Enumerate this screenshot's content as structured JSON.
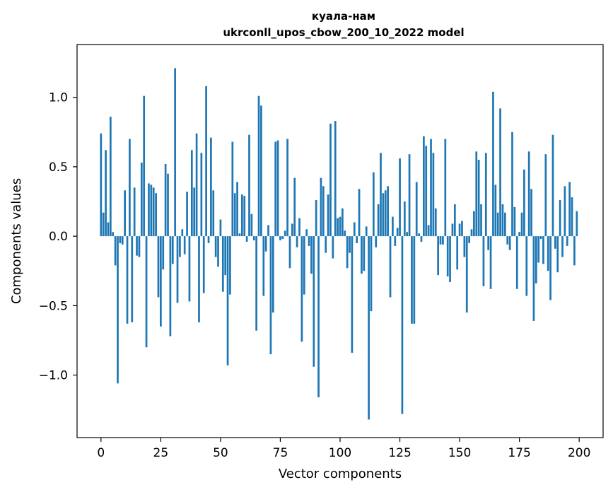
{
  "chart_data": {
    "type": "bar",
    "title": "куала-нам",
    "subtitle": "ukrconll_upos_cbow_200_10_2022 model",
    "xlabel": "Vector components",
    "ylabel": "Components values",
    "xlim": [
      -10,
      210
    ],
    "ylim": [
      -1.45,
      1.38
    ],
    "xticks": [
      0,
      25,
      50,
      75,
      100,
      125,
      150,
      175,
      200
    ],
    "xtick_labels": [
      "0",
      "25",
      "50",
      "75",
      "100",
      "125",
      "150",
      "175",
      "200"
    ],
    "yticks": [
      -1.0,
      -0.5,
      0.0,
      0.5,
      1.0
    ],
    "ytick_labels": [
      "−1.0",
      "−0.5",
      "0.0",
      "0.5",
      "1.0"
    ],
    "grid": false,
    "bar_color": "#1f77b4",
    "values": [
      0.74,
      0.17,
      0.62,
      0.1,
      0.86,
      0.03,
      -0.21,
      -1.06,
      -0.05,
      -0.06,
      0.33,
      -0.63,
      0.7,
      -0.62,
      0.35,
      -0.14,
      -0.15,
      0.53,
      1.01,
      -0.8,
      0.38,
      0.37,
      0.35,
      0.31,
      -0.44,
      -0.65,
      -0.24,
      0.52,
      0.45,
      -0.72,
      -0.2,
      1.21,
      -0.48,
      -0.15,
      0.05,
      -0.13,
      0.32,
      -0.47,
      0.62,
      0.35,
      0.74,
      -0.62,
      0.6,
      -0.41,
      1.08,
      -0.05,
      0.71,
      0.33,
      -0.15,
      -0.22,
      0.12,
      -0.4,
      -0.28,
      -0.93,
      -0.42,
      0.68,
      0.31,
      0.39,
      0.02,
      0.3,
      0.29,
      -0.04,
      0.73,
      0.16,
      -0.03,
      -0.68,
      1.01,
      0.94,
      -0.43,
      -0.11,
      0.08,
      -0.85,
      -0.55,
      0.68,
      0.69,
      -0.03,
      -0.02,
      0.04,
      0.7,
      -0.23,
      0.09,
      0.42,
      -0.08,
      0.13,
      -0.76,
      -0.42,
      0.05,
      -0.07,
      -0.27,
      -0.94,
      0.26,
      -1.16,
      0.42,
      0.36,
      -0.12,
      0.3,
      0.81,
      -0.16,
      0.83,
      0.13,
      0.14,
      0.2,
      0.04,
      -0.23,
      -0.12,
      -0.84,
      0.1,
      -0.05,
      0.34,
      -0.27,
      -0.25,
      0.07,
      -1.32,
      -0.54,
      0.46,
      -0.08,
      0.23,
      0.6,
      0.31,
      0.33,
      0.36,
      -0.44,
      0.14,
      -0.07,
      0.06,
      0.56,
      -1.28,
      0.25,
      0.03,
      0.59,
      -0.63,
      -0.63,
      0.39,
      0.02,
      -0.04,
      0.72,
      0.65,
      0.08,
      0.7,
      0.6,
      0.2,
      -0.28,
      -0.06,
      -0.06,
      0.7,
      -0.29,
      -0.33,
      0.09,
      0.23,
      -0.24,
      0.09,
      0.11,
      -0.15,
      -0.55,
      -0.05,
      0.05,
      0.18,
      0.61,
      0.55,
      0.23,
      -0.36,
      0.6,
      -0.1,
      -0.38,
      1.04,
      0.37,
      0.17,
      0.92,
      0.23,
      0.17,
      -0.06,
      -0.1,
      0.75,
      0.21,
      -0.38,
      0.03,
      0.17,
      0.48,
      -0.43,
      0.61,
      0.34,
      -0.61,
      -0.34,
      -0.19,
      -0.02,
      -0.2,
      0.59,
      -0.25,
      -0.46,
      0.73,
      -0.09,
      -0.26,
      0.26,
      -0.15,
      0.36,
      -0.07,
      0.39,
      0.28,
      -0.21,
      0.18
    ]
  }
}
